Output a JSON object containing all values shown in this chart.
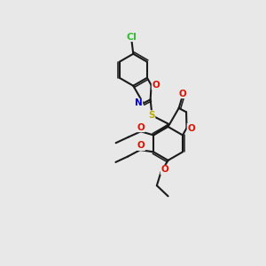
{
  "bg_color": "#e8e8e8",
  "bond_color": "#1a1a1a",
  "bond_width": 1.5,
  "atom_colors": {
    "O": "#dd1100",
    "N": "#0000cc",
    "S": "#bbaa00",
    "Cl": "#33bb33"
  },
  "font_size": 7.5,
  "fig_size": [
    3.0,
    3.0
  ],
  "dpi": 100,
  "xlim": [
    0,
    10
  ],
  "ylim": [
    0,
    10
  ]
}
